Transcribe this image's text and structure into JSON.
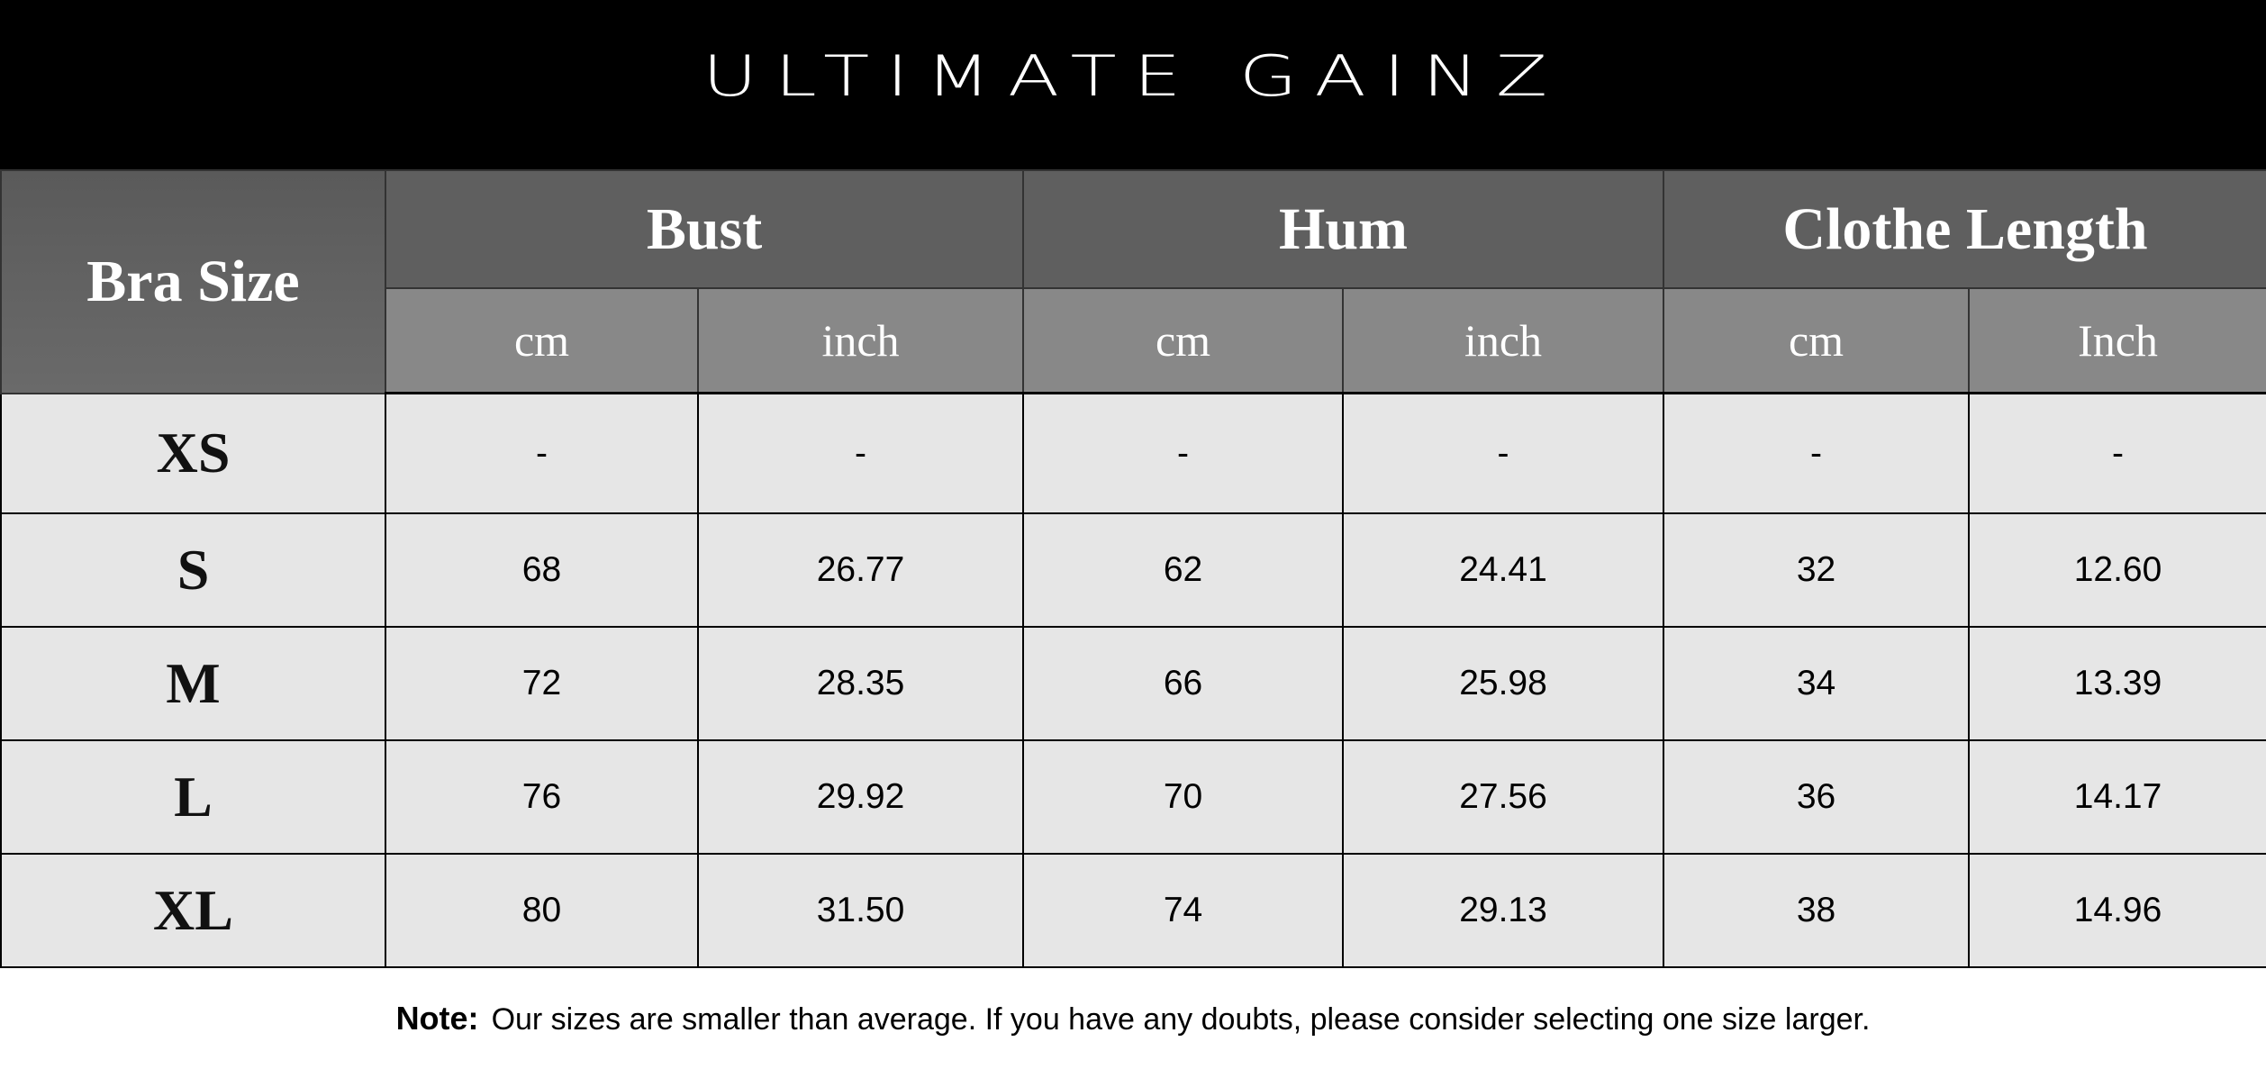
{
  "brand": "ULTIMATE GAINZ",
  "table": {
    "corner": "Bra Size",
    "groups": [
      "Bust",
      "Hum",
      "Clothe Length"
    ],
    "units": [
      "cm",
      "inch",
      "cm",
      "inch",
      "cm",
      "Inch"
    ],
    "rows": [
      {
        "size": "XS",
        "values": [
          "-",
          "-",
          "-",
          "-",
          "-",
          "-"
        ]
      },
      {
        "size": "S",
        "values": [
          "68",
          "26.77",
          "62",
          "24.41",
          "32",
          "12.60"
        ]
      },
      {
        "size": "M",
        "values": [
          "72",
          "28.35",
          "66",
          "25.98",
          "34",
          "13.39"
        ]
      },
      {
        "size": "L",
        "values": [
          "76",
          "29.92",
          "70",
          "27.56",
          "36",
          "14.17"
        ]
      },
      {
        "size": "XL",
        "values": [
          "80",
          "31.50",
          "74",
          "29.13",
          "38",
          "14.96"
        ]
      }
    ]
  },
  "note": {
    "label": "Note:",
    "text": "Our sizes are smaller than average. If you have any doubts, please consider selecting one size larger."
  }
}
